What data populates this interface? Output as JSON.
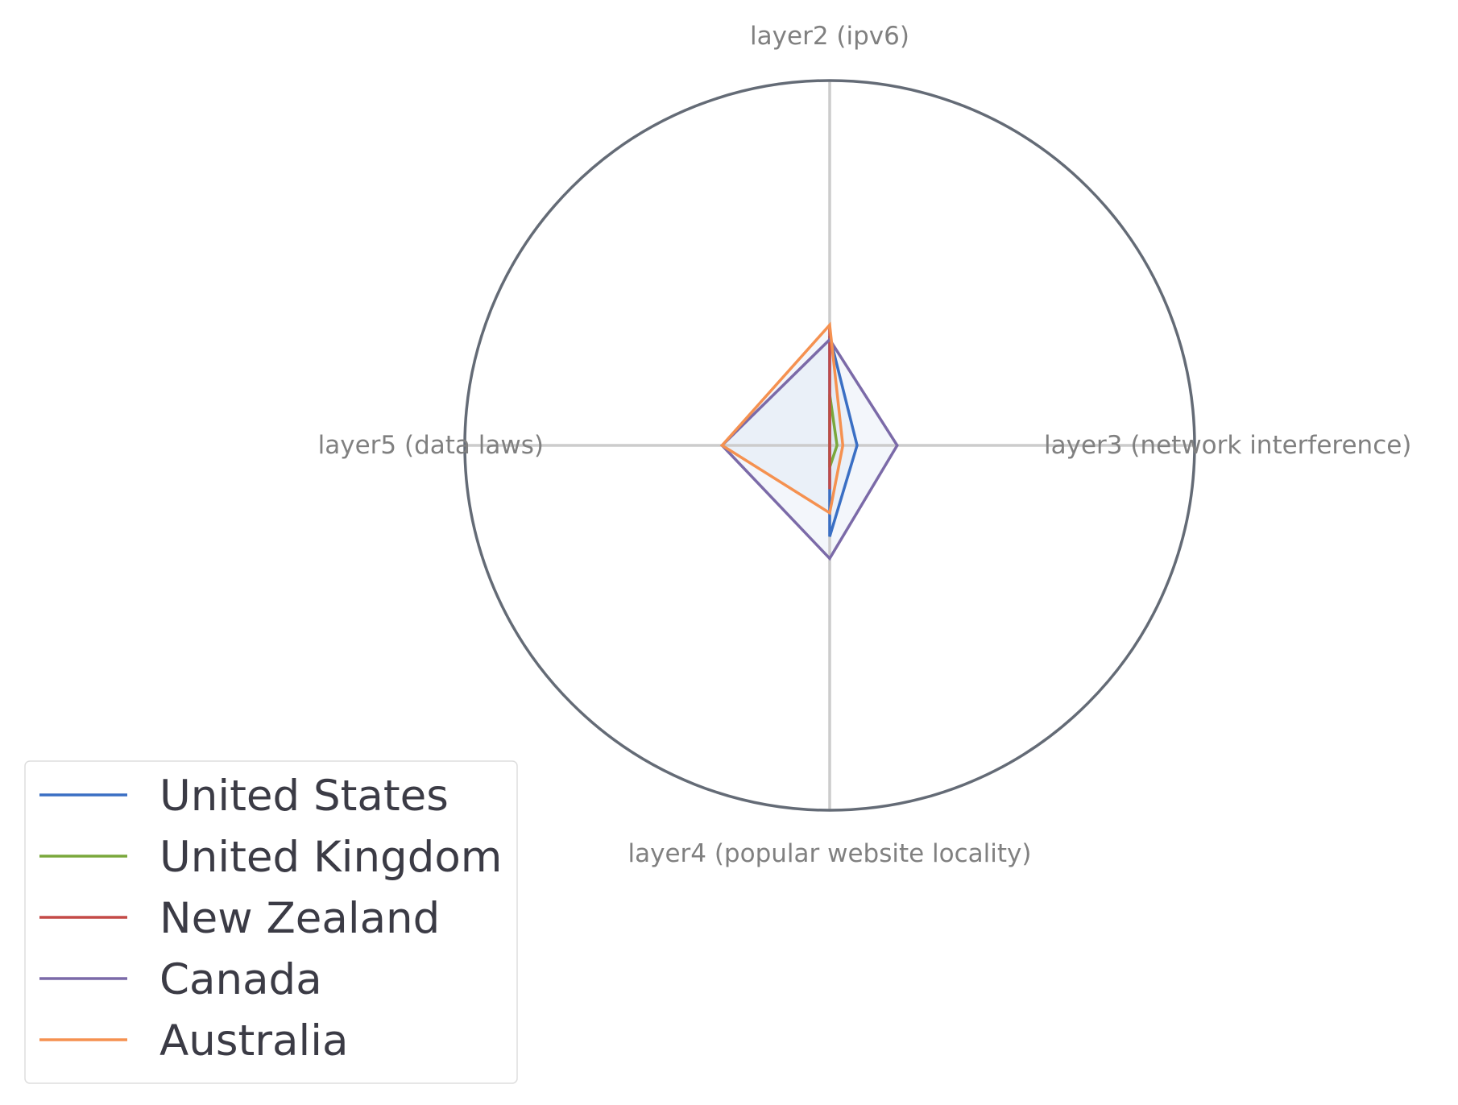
{
  "chart_data": {
    "type": "radar",
    "axes": [
      "layer2 (ipv6)",
      "layer3 (network interference)",
      "layer4 (popular website locality)",
      "layer5 (data laws)"
    ],
    "rlim": [
      0,
      1
    ],
    "grid": true,
    "legend_position": "lower-left",
    "series": [
      {
        "name": "United States",
        "color": "#3a6fc4",
        "values": [
          0.3,
          0.075,
          0.25,
          0.0
        ]
      },
      {
        "name": "United Kingdom",
        "color": "#7aa83c",
        "values": [
          0.14,
          0.02,
          0.06,
          0.0
        ]
      },
      {
        "name": "New Zealand",
        "color": "#c44a47",
        "values": [
          0.32,
          0.0,
          0.12,
          0.0
        ]
      },
      {
        "name": "Canada",
        "color": "#7b6aa8",
        "values": [
          0.29,
          0.185,
          0.31,
          0.295
        ]
      },
      {
        "name": "Australia",
        "color": "#f59150",
        "values": [
          0.33,
          0.036,
          0.185,
          0.295
        ]
      }
    ],
    "fill_color": "#d6e2f3",
    "frame_color": "#646b76",
    "grid_color": "#cccccc"
  }
}
